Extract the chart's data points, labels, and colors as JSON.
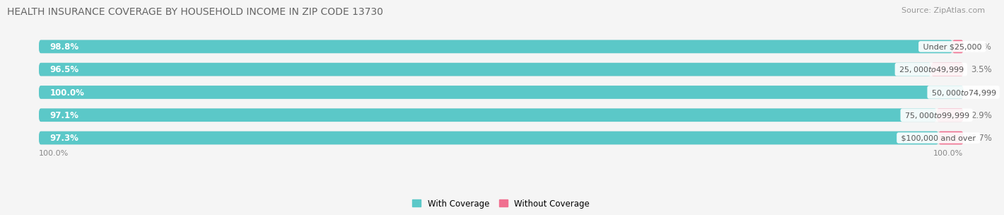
{
  "title": "HEALTH INSURANCE COVERAGE BY HOUSEHOLD INCOME IN ZIP CODE 13730",
  "source": "Source: ZipAtlas.com",
  "categories": [
    "Under $25,000",
    "$25,000 to $49,999",
    "$50,000 to $74,999",
    "$75,000 to $99,999",
    "$100,000 and over"
  ],
  "with_coverage": [
    98.8,
    96.5,
    100.0,
    97.1,
    97.3
  ],
  "without_coverage": [
    1.2,
    3.5,
    0.0,
    2.9,
    2.7
  ],
  "color_with": "#5bc8c8",
  "color_without": "#f07090",
  "bar_bg": "#e2e2e2",
  "title_fontsize": 10,
  "label_fontsize": 8.5,
  "tick_fontsize": 8,
  "source_fontsize": 8,
  "legend_fontsize": 8.5,
  "fig_bg": "#f5f5f5",
  "bar_area_bg": "#f5f5f5"
}
